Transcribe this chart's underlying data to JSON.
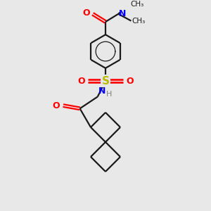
{
  "bg_color": "#e8e8e8",
  "bond_color": "#1a1a1a",
  "oxygen_color": "#ff0000",
  "nitrogen_color": "#0000ff",
  "sulfur_color": "#bbbb00",
  "hydrogen_color": "#808080",
  "line_width": 1.6,
  "figsize": [
    3.0,
    3.0
  ],
  "dpi": 100,
  "xlim": [
    0,
    10
  ],
  "ylim": [
    0,
    10
  ]
}
